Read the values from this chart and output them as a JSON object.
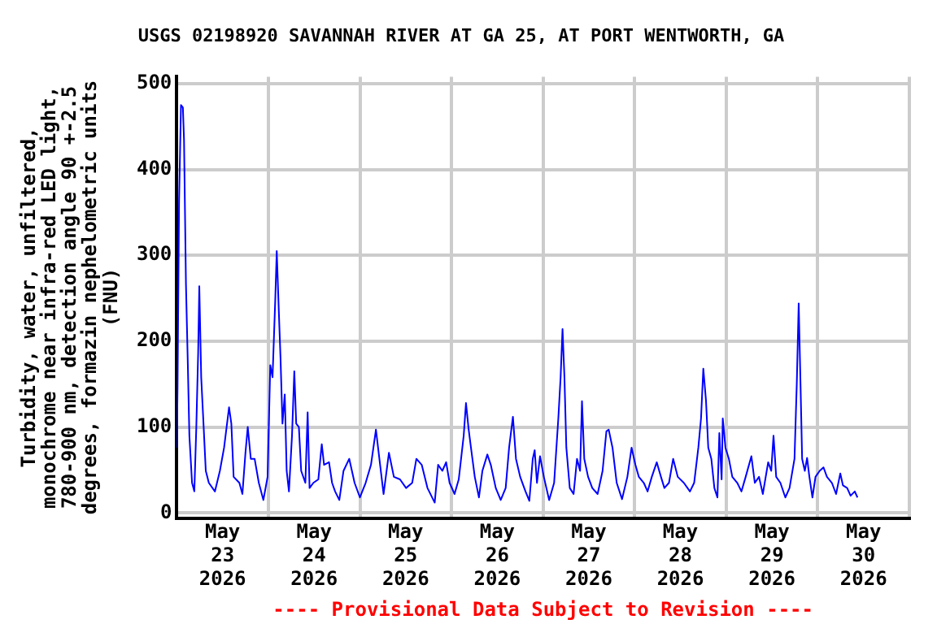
{
  "chart_data": {
    "type": "line",
    "title": "USGS 02198920 SAVANNAH RIVER AT GA 25, AT PORT WENTWORTH, GA",
    "ylabel": "Turbidity, water, unfiltered, monochrome near infra-red LED light, 780-900 nm, detection angle 90 +-2.5 degrees, formazin nephelometric units (FNU)",
    "annotations": [
      "---- Provisional Data Subject to Revision ----"
    ],
    "x": [
      "2026-05-23T00:00",
      "2026-05-23T00:12",
      "2026-05-23T00:36",
      "2026-05-23T01:06",
      "2026-05-23T01:36",
      "2026-05-23T01:54",
      "2026-05-23T02:24",
      "2026-05-23T02:54",
      "2026-05-23T03:18",
      "2026-05-23T04:00",
      "2026-05-23T04:36",
      "2026-05-23T05:06",
      "2026-05-23T05:36",
      "2026-05-23T05:54",
      "2026-05-23T06:24",
      "2026-05-23T07:00",
      "2026-05-23T07:36",
      "2026-05-23T08:24",
      "2026-05-23T10:00",
      "2026-05-23T11:18",
      "2026-05-23T12:24",
      "2026-05-23T13:42",
      "2026-05-23T14:18",
      "2026-05-23T14:54",
      "2026-05-23T16:24",
      "2026-05-23T17:12",
      "2026-05-23T18:00",
      "2026-05-23T18:36",
      "2026-05-23T19:24",
      "2026-05-23T20:24",
      "2026-05-23T21:30",
      "2026-05-23T22:42",
      "2026-05-23T23:48",
      "2026-05-24T00:30",
      "2026-05-24T01:06",
      "2026-05-24T01:48",
      "2026-05-24T02:12",
      "2026-05-24T02:42",
      "2026-05-24T03:12",
      "2026-05-24T03:42",
      "2026-05-24T04:18",
      "2026-05-24T04:48",
      "2026-05-24T05:24",
      "2026-05-24T06:12",
      "2026-05-24T06:48",
      "2026-05-24T07:18",
      "2026-05-24T08:00",
      "2026-05-24T08:36",
      "2026-05-24T09:42",
      "2026-05-24T10:18",
      "2026-05-24T10:48",
      "2026-05-24T11:48",
      "2026-05-24T13:06",
      "2026-05-24T14:00",
      "2026-05-24T14:36",
      "2026-05-24T15:54",
      "2026-05-24T16:42",
      "2026-05-24T17:30",
      "2026-05-24T18:36",
      "2026-05-24T19:42",
      "2026-05-24T21:12",
      "2026-05-24T22:36",
      "2026-05-25T00:00",
      "2026-05-25T01:30",
      "2026-05-25T02:54",
      "2026-05-25T04:12",
      "2026-05-25T05:06",
      "2026-05-25T06:12",
      "2026-05-25T07:36",
      "2026-05-25T08:54",
      "2026-05-25T10:30",
      "2026-05-25T12:06",
      "2026-05-25T13:42",
      "2026-05-25T14:48",
      "2026-05-25T16:12",
      "2026-05-25T17:42",
      "2026-05-25T19:36",
      "2026-05-25T20:30",
      "2026-05-25T21:36",
      "2026-05-25T22:36",
      "2026-05-25T23:30",
      "2026-05-26T00:48",
      "2026-05-26T01:54",
      "2026-05-26T03:12",
      "2026-05-26T03:48",
      "2026-05-26T04:30",
      "2026-05-26T05:06",
      "2026-05-26T06:06",
      "2026-05-26T07:12",
      "2026-05-26T08:06",
      "2026-05-26T09:24",
      "2026-05-26T10:18",
      "2026-05-26T11:36",
      "2026-05-26T12:54",
      "2026-05-26T14:12",
      "2026-05-26T15:06",
      "2026-05-26T16:06",
      "2026-05-26T16:54",
      "2026-05-26T18:00",
      "2026-05-26T19:24",
      "2026-05-26T20:24",
      "2026-05-26T21:18",
      "2026-05-26T21:48",
      "2026-05-26T22:24",
      "2026-05-26T23:12",
      "2026-05-27T00:12",
      "2026-05-27T01:36",
      "2026-05-27T02:54",
      "2026-05-27T04:00",
      "2026-05-27T04:36",
      "2026-05-27T05:06",
      "2026-05-27T05:36",
      "2026-05-27T06:06",
      "2026-05-27T07:00",
      "2026-05-27T08:00",
      "2026-05-27T08:54",
      "2026-05-27T09:42",
      "2026-05-27T10:12",
      "2026-05-27T10:48",
      "2026-05-27T11:48",
      "2026-05-27T12:54",
      "2026-05-27T14:18",
      "2026-05-27T15:36",
      "2026-05-27T16:36",
      "2026-05-27T17:12",
      "2026-05-27T18:12",
      "2026-05-27T19:18",
      "2026-05-27T20:42",
      "2026-05-27T22:06",
      "2026-05-27T23:12",
      "2026-05-28T00:12",
      "2026-05-28T01:06",
      "2026-05-28T02:24",
      "2026-05-28T03:24",
      "2026-05-28T04:30",
      "2026-05-28T05:48",
      "2026-05-28T06:54",
      "2026-05-28T07:48",
      "2026-05-28T09:00",
      "2026-05-28T10:06",
      "2026-05-28T11:18",
      "2026-05-28T12:54",
      "2026-05-28T14:30",
      "2026-05-28T15:36",
      "2026-05-28T16:42",
      "2026-05-28T17:24",
      "2026-05-28T18:00",
      "2026-05-28T18:42",
      "2026-05-28T19:18",
      "2026-05-28T20:06",
      "2026-05-28T20:54",
      "2026-05-28T21:42",
      "2026-05-28T22:12",
      "2026-05-28T22:48",
      "2026-05-28T23:06",
      "2026-05-28T23:48",
      "2026-05-29T00:42",
      "2026-05-29T01:36",
      "2026-05-29T02:54",
      "2026-05-29T04:00",
      "2026-05-29T05:06",
      "2026-05-29T06:36",
      "2026-05-29T07:30",
      "2026-05-29T08:36",
      "2026-05-29T09:36",
      "2026-05-29T11:00",
      "2026-05-29T11:48",
      "2026-05-29T12:24",
      "2026-05-29T13:06",
      "2026-05-29T14:12",
      "2026-05-29T15:30",
      "2026-05-29T16:36",
      "2026-05-29T17:54",
      "2026-05-29T18:30",
      "2026-05-29T19:00",
      "2026-05-29T19:30",
      "2026-05-29T19:54",
      "2026-05-29T20:36",
      "2026-05-29T21:12",
      "2026-05-29T21:48",
      "2026-05-29T22:36",
      "2026-05-29T23:24",
      "2026-05-30T00:30",
      "2026-05-30T01:30",
      "2026-05-30T02:24",
      "2026-05-30T03:42",
      "2026-05-30T04:48",
      "2026-05-30T05:54",
      "2026-05-30T06:36",
      "2026-05-30T07:42",
      "2026-05-30T08:36",
      "2026-05-30T09:42",
      "2026-05-30T10:24"
    ],
    "series": [
      {
        "color": "#0000ff",
        "values": [
          76,
          145,
          363,
          475,
          472,
          434,
          267,
          172,
          90,
          35,
          25,
          97,
          186,
          264,
          158,
          104,
          49,
          35,
          25,
          49,
          76,
          123,
          104,
          42,
          35,
          22,
          70,
          100,
          63,
          63,
          35,
          15,
          42,
          172,
          158,
          247,
          305,
          240,
          179,
          104,
          138,
          49,
          25,
          90,
          165,
          104,
          100,
          49,
          35,
          117,
          29,
          35,
          39,
          80,
          56,
          59,
          35,
          25,
          15,
          49,
          63,
          35,
          18,
          35,
          56,
          97,
          63,
          22,
          70,
          42,
          39,
          29,
          35,
          63,
          56,
          29,
          12,
          56,
          49,
          59,
          35,
          22,
          39,
          90,
          128,
          97,
          76,
          42,
          18,
          49,
          68,
          56,
          29,
          15,
          29,
          76,
          112,
          63,
          42,
          25,
          14,
          63,
          73,
          35,
          66,
          42,
          15,
          35,
          110,
          158,
          214,
          158,
          76,
          29,
          22,
          63,
          49,
          130,
          63,
          42,
          29,
          22,
          49,
          95,
          97,
          76,
          35,
          16,
          42,
          76,
          56,
          42,
          35,
          25,
          42,
          59,
          42,
          29,
          35,
          63,
          42,
          35,
          25,
          35,
          76,
          110,
          168,
          131,
          76,
          63,
          29,
          18,
          93,
          39,
          110,
          76,
          63,
          42,
          35,
          25,
          42,
          66,
          35,
          42,
          22,
          59,
          49,
          90,
          42,
          35,
          18,
          29,
          63,
          151,
          244,
          145,
          63,
          49,
          64,
          42,
          18,
          42,
          49,
          53,
          42,
          35,
          22,
          46,
          32,
          29,
          20,
          25,
          18
        ]
      }
    ],
    "xlim": [
      "2026-05-23T00:00",
      "2026-05-31T00:00"
    ],
    "xticks": [
      {
        "value": "2026-05-23T00:00",
        "label": null
      },
      {
        "value": "2026-05-23T12:00",
        "label": "May 23 2026"
      },
      {
        "value": "2026-05-24T00:00",
        "label": null
      },
      {
        "value": "2026-05-24T12:00",
        "label": "May 24 2026"
      },
      {
        "value": "2026-05-25T00:00",
        "label": null
      },
      {
        "value": "2026-05-25T12:00",
        "label": "May 25 2026"
      },
      {
        "value": "2026-05-26T00:00",
        "label": null
      },
      {
        "value": "2026-05-26T12:00",
        "label": "May 26 2026"
      },
      {
        "value": "2026-05-27T00:00",
        "label": null
      },
      {
        "value": "2026-05-27T12:00",
        "label": "May 27 2026"
      },
      {
        "value": "2026-05-28T00:00",
        "label": null
      },
      {
        "value": "2026-05-28T12:00",
        "label": "May 28 2026"
      },
      {
        "value": "2026-05-29T00:00",
        "label": null
      },
      {
        "value": "2026-05-29T12:00",
        "label": "May 29 2026"
      },
      {
        "value": "2026-05-30T00:00",
        "label": null
      },
      {
        "value": "2026-05-30T12:00",
        "label": "May 30 2026"
      },
      {
        "value": "2026-05-31T00:00",
        "label": null
      }
    ],
    "ylim": [
      -6,
      508
    ],
    "yticks": [
      0,
      100,
      200,
      300,
      400,
      500
    ],
    "grid": true,
    "legend": false
  }
}
